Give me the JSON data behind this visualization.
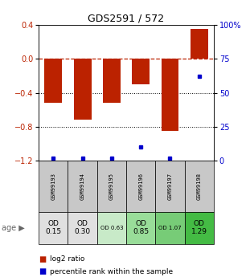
{
  "title": "GDS2591 / 572",
  "samples": [
    "GSM99193",
    "GSM99194",
    "GSM99195",
    "GSM99196",
    "GSM99197",
    "GSM99198"
  ],
  "log2_ratios": [
    -0.52,
    -0.72,
    -0.52,
    -0.3,
    -0.85,
    0.35
  ],
  "percentile_ranks": [
    2,
    2,
    2,
    10,
    2,
    62
  ],
  "bar_color": "#bb2200",
  "dot_color": "#0000cc",
  "ylim_left": [
    -1.2,
    0.4
  ],
  "ylim_right": [
    0,
    100
  ],
  "yticks_left": [
    0.4,
    0.0,
    -0.4,
    -0.8,
    -1.2
  ],
  "yticks_right": [
    100,
    75,
    50,
    25,
    0
  ],
  "age_labels": [
    "OD\n0.15",
    "OD\n0.30",
    "OD 0.63",
    "OD\n0.85",
    "OD 1.07",
    "OD\n1.29"
  ],
  "age_bg_colors": [
    "#e0e0e0",
    "#e0e0e0",
    "#c8eac8",
    "#99dd99",
    "#77cc77",
    "#44bb44"
  ],
  "sample_bg_color": "#c8c8c8",
  "legend_log2_color": "#bb2200",
  "legend_pct_color": "#0000cc"
}
